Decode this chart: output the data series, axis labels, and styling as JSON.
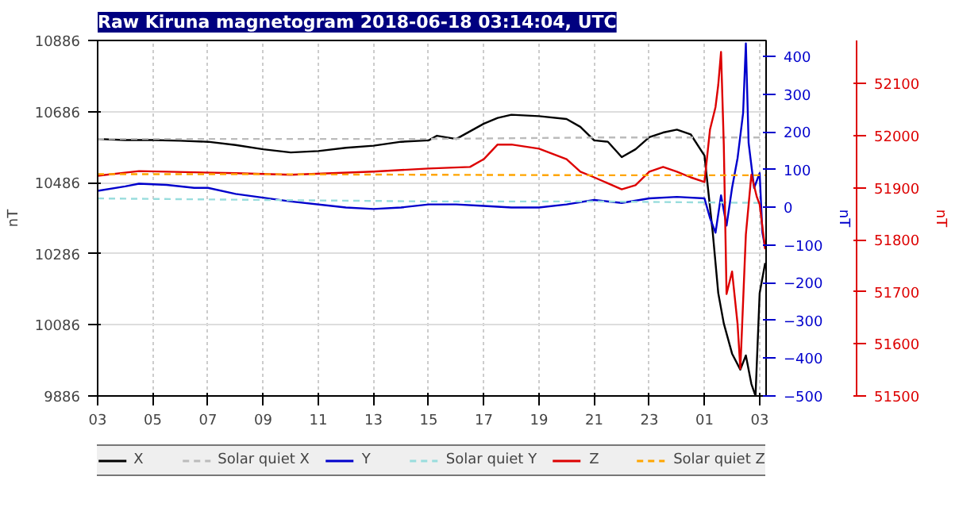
{
  "chart_data": {
    "type": "line",
    "title": "Raw Kiruna magnetogram 2018-06-18 03:14:04, UTC",
    "ylabel": "nT",
    "y2label": "nT",
    "y3label": "nT",
    "xlim": [
      "2018-06-17T03:00",
      "2018-06-18T03:14"
    ],
    "xticks": [
      {
        "value": "2018-06-17T03:00",
        "label": "03"
      },
      {
        "value": "2018-06-17T05:00",
        "label": "05"
      },
      {
        "value": "2018-06-17T07:00",
        "label": "07"
      },
      {
        "value": "2018-06-17T09:00",
        "label": "09"
      },
      {
        "value": "2018-06-17T11:00",
        "label": "11"
      },
      {
        "value": "2018-06-17T13:00",
        "label": "13"
      },
      {
        "value": "2018-06-17T15:00",
        "label": "15"
      },
      {
        "value": "2018-06-17T17:00",
        "label": "17"
      },
      {
        "value": "2018-06-17T19:00",
        "label": "19"
      },
      {
        "value": "2018-06-17T21:00",
        "label": "21"
      },
      {
        "value": "2018-06-17T23:00",
        "label": "23"
      },
      {
        "value": "2018-06-18T01:00",
        "label": "01"
      },
      {
        "value": "2018-06-18T03:00",
        "label": "03"
      }
    ],
    "ylim": [
      9886,
      10886
    ],
    "yticks": [
      9886,
      10086,
      10286,
      10486,
      10686,
      10886
    ],
    "y2lim": [
      -500,
      443
    ],
    "y2ticks": [
      -500,
      -400,
      -300,
      -200,
      -100,
      0,
      100,
      200,
      300,
      400
    ],
    "y3lim": [
      51500,
      52183
    ],
    "y3ticks": [
      51500,
      51600,
      51700,
      51800,
      51900,
      52000,
      52100
    ],
    "grid": true,
    "legend": "bottom",
    "line_style": "solid",
    "series": [
      {
        "name": "X",
        "color": "#000000",
        "x": [
          "2018-06-17T03:00",
          "2018-06-17T04:00",
          "2018-06-17T05:00",
          "2018-06-17T06:00",
          "2018-06-17T07:00",
          "2018-06-17T08:00",
          "2018-06-17T09:00",
          "2018-06-17T10:00",
          "2018-06-17T11:00",
          "2018-06-17T12:00",
          "2018-06-17T13:00",
          "2018-06-17T14:00",
          "2018-06-17T15:00",
          "2018-06-17T15:18",
          "2018-06-17T16:00",
          "2018-06-17T17:00",
          "2018-06-17T17:30",
          "2018-06-17T18:00",
          "2018-06-17T19:00",
          "2018-06-17T20:00",
          "2018-06-17T20:30",
          "2018-06-17T21:00",
          "2018-06-17T21:30",
          "2018-06-17T22:00",
          "2018-06-17T22:30",
          "2018-06-17T23:00",
          "2018-06-17T23:30",
          "2018-06-18T00:00",
          "2018-06-18T00:30",
          "2018-06-18T01:00",
          "2018-06-18T01:18",
          "2018-06-18T01:30",
          "2018-06-18T01:42",
          "2018-06-18T02:00",
          "2018-06-18T02:18",
          "2018-06-18T02:30",
          "2018-06-18T02:42",
          "2018-06-18T02:51",
          "2018-06-18T03:00",
          "2018-06-18T03:12"
        ],
        "values": [
          10609,
          10606,
          10606,
          10604,
          10601,
          10592,
          10580,
          10571,
          10575,
          10584,
          10590,
          10601,
          10605,
          10618,
          10609,
          10652,
          10668,
          10677,
          10673,
          10665,
          10643,
          10605,
          10601,
          10558,
          10580,
          10614,
          10627,
          10635,
          10622,
          10562,
          10345,
          10175,
          10090,
          10005,
          9960,
          10000,
          9920,
          9886,
          10175,
          10260
        ]
      },
      {
        "name": "Solar quiet X",
        "color": "#bbbbbb",
        "line_style": "dashed",
        "x": [
          "2018-06-17T03:00",
          "2018-06-17T09:00",
          "2018-06-17T15:00",
          "2018-06-17T21:00",
          "2018-06-18T03:14"
        ],
        "values": [
          10609,
          10609,
          10609,
          10613,
          10613
        ]
      },
      {
        "name": "Y",
        "color": "#0000cc",
        "axis": "y2",
        "x": [
          "2018-06-17T03:00",
          "2018-06-17T04:00",
          "2018-06-17T04:30",
          "2018-06-17T05:30",
          "2018-06-17T06:30",
          "2018-06-17T07:00",
          "2018-06-17T08:00",
          "2018-06-17T10:00",
          "2018-06-17T12:00",
          "2018-06-17T13:00",
          "2018-06-17T14:00",
          "2018-06-17T15:00",
          "2018-06-17T16:00",
          "2018-06-17T17:00",
          "2018-06-17T18:00",
          "2018-06-17T19:00",
          "2018-06-17T20:00",
          "2018-06-17T21:00",
          "2018-06-17T22:00",
          "2018-06-17T23:00",
          "2018-06-18T00:00",
          "2018-06-18T01:00",
          "2018-06-18T01:12",
          "2018-06-18T01:24",
          "2018-06-18T01:36",
          "2018-06-18T01:48",
          "2018-06-18T02:00",
          "2018-06-18T02:12",
          "2018-06-18T02:24",
          "2018-06-18T02:30",
          "2018-06-18T02:36",
          "2018-06-18T02:48",
          "2018-06-18T03:00",
          "2018-06-18T03:06",
          "2018-06-18T03:12"
        ],
        "values": [
          44,
          56,
          63,
          60,
          52,
          52,
          36,
          16,
          0,
          -4,
          0,
          8,
          8,
          4,
          0,
          0,
          8,
          20,
          12,
          24,
          28,
          24,
          -28,
          -67,
          32,
          -48,
          52,
          131,
          250,
          435,
          171,
          52,
          91,
          -67,
          -107
        ]
      },
      {
        "name": "Solar quiet Y",
        "color": "#99dddd",
        "line_style": "dashed",
        "axis": "y2",
        "x": [
          "2018-06-17T03:00",
          "2018-06-17T09:00",
          "2018-06-17T15:00",
          "2018-06-17T21:00",
          "2018-06-18T03:14"
        ],
        "values": [
          24,
          20,
          16,
          16,
          12
        ]
      },
      {
        "name": "Z",
        "color": "#dd0000",
        "axis": "y3",
        "x": [
          "2018-06-17T03:00",
          "2018-06-17T04:30",
          "2018-06-17T08:00",
          "2018-06-17T10:00",
          "2018-06-17T13:00",
          "2018-06-17T15:00",
          "2018-06-17T16:30",
          "2018-06-17T17:00",
          "2018-06-17T17:30",
          "2018-06-17T18:00",
          "2018-06-17T19:00",
          "2018-06-17T20:00",
          "2018-06-17T20:30",
          "2018-06-17T21:00",
          "2018-06-17T22:00",
          "2018-06-17T22:30",
          "2018-06-17T23:00",
          "2018-06-17T23:30",
          "2018-06-18T00:00",
          "2018-06-18T00:30",
          "2018-06-18T01:00",
          "2018-06-18T01:12",
          "2018-06-18T01:24",
          "2018-06-18T01:30",
          "2018-06-18T01:36",
          "2018-06-18T01:42",
          "2018-06-18T01:48",
          "2018-06-18T02:00",
          "2018-06-18T02:12",
          "2018-06-18T02:18",
          "2018-06-18T02:30",
          "2018-06-18T02:42",
          "2018-06-18T02:54",
          "2018-06-18T03:00",
          "2018-06-18T03:12"
        ],
        "values": [
          51923,
          51932,
          51928,
          51925,
          51931,
          51937,
          51940,
          51955,
          51983,
          51983,
          51975,
          51955,
          51931,
          51920,
          51897,
          51905,
          51931,
          51940,
          51931,
          51920,
          51911,
          52012,
          52055,
          52098,
          52161,
          51983,
          51696,
          51739,
          51638,
          51552,
          51810,
          51925,
          51882,
          51868,
          51782
        ]
      },
      {
        "name": "Solar quiet Z",
        "color": "#ffa500",
        "line_style": "dashed",
        "axis": "y3",
        "x": [
          "2018-06-17T03:00",
          "2018-06-17T09:00",
          "2018-06-17T15:00",
          "2018-06-17T21:00",
          "2018-06-18T03:14"
        ],
        "values": [
          51926,
          51926,
          51925,
          51924,
          51924
        ]
      }
    ]
  }
}
